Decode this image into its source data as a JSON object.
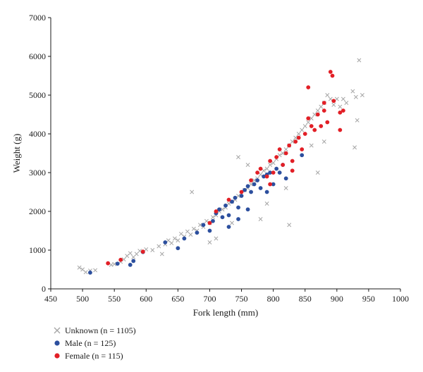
{
  "chart_data": {
    "type": "scatter",
    "title": "",
    "xlabel": "Fork length (mm)",
    "ylabel": "Weight (g)",
    "xlim": [
      450,
      1000
    ],
    "ylim": [
      0,
      7000
    ],
    "x_ticks": [
      450,
      500,
      550,
      600,
      650,
      700,
      750,
      800,
      850,
      900,
      950,
      1000
    ],
    "y_ticks": [
      0,
      1000,
      2000,
      3000,
      4000,
      5000,
      6000,
      7000
    ],
    "grid": false,
    "legend_position": "bottom-left",
    "series": [
      {
        "name": "Unknown (n = 1105)",
        "marker": "x",
        "color": "#a6a6a6",
        "points": [
          [
            495,
            550
          ],
          [
            500,
            500
          ],
          [
            505,
            430
          ],
          [
            512,
            470
          ],
          [
            520,
            480
          ],
          [
            545,
            620
          ],
          [
            550,
            640
          ],
          [
            560,
            700
          ],
          [
            565,
            760
          ],
          [
            570,
            850
          ],
          [
            575,
            920
          ],
          [
            580,
            820
          ],
          [
            585,
            900
          ],
          [
            590,
            980
          ],
          [
            600,
            1020
          ],
          [
            610,
            1000
          ],
          [
            620,
            1100
          ],
          [
            625,
            900
          ],
          [
            630,
            1150
          ],
          [
            635,
            1250
          ],
          [
            640,
            1180
          ],
          [
            645,
            1300
          ],
          [
            650,
            1250
          ],
          [
            655,
            1420
          ],
          [
            660,
            1350
          ],
          [
            665,
            1480
          ],
          [
            670,
            1400
          ],
          [
            672,
            2500
          ],
          [
            675,
            1550
          ],
          [
            680,
            1500
          ],
          [
            685,
            1650
          ],
          [
            690,
            1600
          ],
          [
            695,
            1750
          ],
          [
            700,
            1700
          ],
          [
            705,
            1850
          ],
          [
            710,
            1900
          ],
          [
            715,
            2000
          ],
          [
            720,
            2050
          ],
          [
            725,
            2100
          ],
          [
            730,
            2200
          ],
          [
            735,
            2250
          ],
          [
            740,
            2300
          ],
          [
            745,
            2400
          ],
          [
            750,
            2450
          ],
          [
            755,
            2550
          ],
          [
            760,
            2600
          ],
          [
            765,
            2700
          ],
          [
            770,
            2800
          ],
          [
            775,
            2850
          ],
          [
            780,
            2950
          ],
          [
            785,
            3050
          ],
          [
            790,
            3100
          ],
          [
            795,
            3200
          ],
          [
            800,
            3250
          ],
          [
            805,
            3350
          ],
          [
            810,
            3450
          ],
          [
            815,
            3500
          ],
          [
            820,
            3600
          ],
          [
            825,
            3700
          ],
          [
            830,
            3800
          ],
          [
            835,
            3900
          ],
          [
            840,
            4000
          ],
          [
            845,
            4100
          ],
          [
            850,
            4200
          ],
          [
            855,
            4300
          ],
          [
            860,
            4400
          ],
          [
            865,
            4500
          ],
          [
            870,
            4600
          ],
          [
            875,
            4700
          ],
          [
            880,
            4800
          ],
          [
            885,
            5000
          ],
          [
            890,
            4900
          ],
          [
            895,
            4750
          ],
          [
            900,
            4900
          ],
          [
            905,
            4700
          ],
          [
            910,
            4900
          ],
          [
            915,
            4800
          ],
          [
            925,
            5100
          ],
          [
            930,
            4950
          ],
          [
            935,
            5900
          ],
          [
            940,
            5000
          ],
          [
            928,
            3650
          ],
          [
            932,
            4350
          ],
          [
            825,
            1650
          ],
          [
            710,
            1300
          ],
          [
            700,
            1200
          ],
          [
            760,
            3200
          ],
          [
            745,
            3400
          ],
          [
            780,
            1800
          ],
          [
            820,
            2600
          ],
          [
            860,
            3700
          ],
          [
            870,
            3000
          ],
          [
            880,
            3800
          ],
          [
            735,
            1700
          ],
          [
            790,
            2200
          ]
        ]
      },
      {
        "name": "Male (n = 125)",
        "marker": "circle",
        "color": "#2c4f9e",
        "points": [
          [
            512,
            420
          ],
          [
            555,
            650
          ],
          [
            575,
            620
          ],
          [
            580,
            720
          ],
          [
            595,
            950
          ],
          [
            630,
            1200
          ],
          [
            650,
            1050
          ],
          [
            660,
            1300
          ],
          [
            680,
            1450
          ],
          [
            690,
            1650
          ],
          [
            700,
            1500
          ],
          [
            705,
            1750
          ],
          [
            710,
            1950
          ],
          [
            715,
            2050
          ],
          [
            720,
            1850
          ],
          [
            725,
            2150
          ],
          [
            730,
            1900
          ],
          [
            735,
            2250
          ],
          [
            740,
            2350
          ],
          [
            745,
            2100
          ],
          [
            750,
            2400
          ],
          [
            755,
            2550
          ],
          [
            760,
            2650
          ],
          [
            765,
            2500
          ],
          [
            770,
            2700
          ],
          [
            775,
            2800
          ],
          [
            780,
            2600
          ],
          [
            785,
            2900
          ],
          [
            790,
            2950
          ],
          [
            795,
            3000
          ],
          [
            800,
            2700
          ],
          [
            805,
            3100
          ],
          [
            810,
            3000
          ],
          [
            815,
            3200
          ],
          [
            820,
            2850
          ],
          [
            845,
            3450
          ],
          [
            745,
            1800
          ],
          [
            760,
            2050
          ],
          [
            730,
            1600
          ],
          [
            790,
            2500
          ]
        ]
      },
      {
        "name": "Female (n = 115)",
        "marker": "circle",
        "color": "#e21f26",
        "points": [
          [
            540,
            660
          ],
          [
            560,
            750
          ],
          [
            595,
            960
          ],
          [
            700,
            1700
          ],
          [
            710,
            2000
          ],
          [
            730,
            2300
          ],
          [
            750,
            2500
          ],
          [
            765,
            2800
          ],
          [
            775,
            3000
          ],
          [
            780,
            3100
          ],
          [
            790,
            2900
          ],
          [
            795,
            3300
          ],
          [
            800,
            3000
          ],
          [
            805,
            3400
          ],
          [
            810,
            3600
          ],
          [
            815,
            3200
          ],
          [
            820,
            3500
          ],
          [
            825,
            3700
          ],
          [
            830,
            3300
          ],
          [
            835,
            3800
          ],
          [
            840,
            3900
          ],
          [
            845,
            3600
          ],
          [
            850,
            4000
          ],
          [
            855,
            4400
          ],
          [
            860,
            4200
          ],
          [
            865,
            4100
          ],
          [
            870,
            4500
          ],
          [
            875,
            4200
          ],
          [
            880,
            4600
          ],
          [
            885,
            4300
          ],
          [
            890,
            5600
          ],
          [
            893,
            5500
          ],
          [
            855,
            5200
          ],
          [
            880,
            4800
          ],
          [
            895,
            4850
          ],
          [
            905,
            4550
          ],
          [
            910,
            4600
          ],
          [
            905,
            4100
          ],
          [
            830,
            3050
          ],
          [
            795,
            2700
          ]
        ]
      }
    ]
  }
}
